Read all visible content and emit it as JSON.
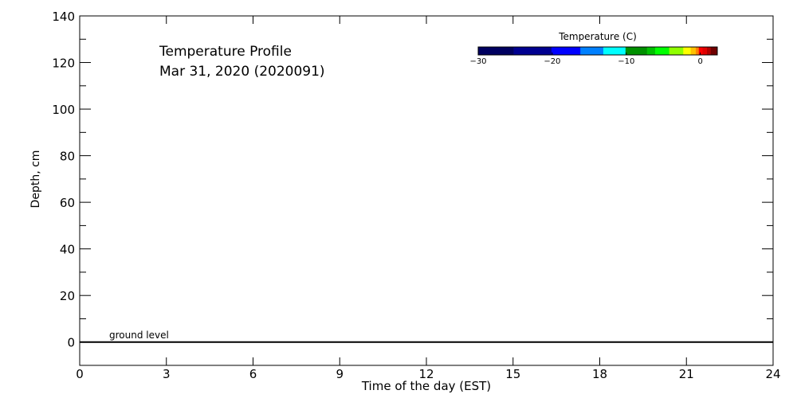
{
  "chart_data": {
    "type": "heatmap",
    "title": "Temperature Profile",
    "subtitle": "Mar 31, 2020 (2020091)",
    "xlabel": "Time of the day (EST)",
    "ylabel": "Depth, cm",
    "xlim": [
      0,
      24
    ],
    "ylim": [
      -10,
      140
    ],
    "xticks": [
      0,
      3,
      6,
      9,
      12,
      15,
      18,
      21,
      24
    ],
    "yticks": [
      0,
      20,
      40,
      60,
      80,
      100,
      120,
      140
    ],
    "grid": false,
    "annotation": {
      "text": "ground level",
      "depth": 0
    },
    "values": [],
    "colorbar": {
      "title": "Temperature (C)",
      "range": [
        -30,
        2.3
      ],
      "ticks": [
        -30,
        -20,
        -10,
        0
      ],
      "placement": "top-right",
      "segments": [
        {
          "from": -30,
          "to": -25.2,
          "color": "#000060"
        },
        {
          "from": -25.2,
          "to": -20.1,
          "color": "#000090"
        },
        {
          "from": -20.1,
          "to": -16.2,
          "color": "#0000ff"
        },
        {
          "from": -16.2,
          "to": -13.1,
          "color": "#0080ff"
        },
        {
          "from": -13.1,
          "to": -10.1,
          "color": "#00ffff"
        },
        {
          "from": -10.1,
          "to": -7.2,
          "color": "#009000"
        },
        {
          "from": -7.2,
          "to": -6.1,
          "color": "#00c000"
        },
        {
          "from": -6.1,
          "to": -4.2,
          "color": "#00ff00"
        },
        {
          "from": -4.2,
          "to": -2.3,
          "color": "#90ff00"
        },
        {
          "from": -2.3,
          "to": -1.3,
          "color": "#ffff00"
        },
        {
          "from": -1.3,
          "to": -0.6,
          "color": "#ffc000"
        },
        {
          "from": -0.6,
          "to": -0.2,
          "color": "#ff8000"
        },
        {
          "from": -0.2,
          "to": 0.3,
          "color": "#ff0000"
        },
        {
          "from": 0.3,
          "to": 0.9,
          "color": "#e00000"
        },
        {
          "from": 0.9,
          "to": 1.4,
          "color": "#b00000"
        },
        {
          "from": 1.4,
          "to": 2.3,
          "color": "#700000"
        }
      ]
    }
  }
}
